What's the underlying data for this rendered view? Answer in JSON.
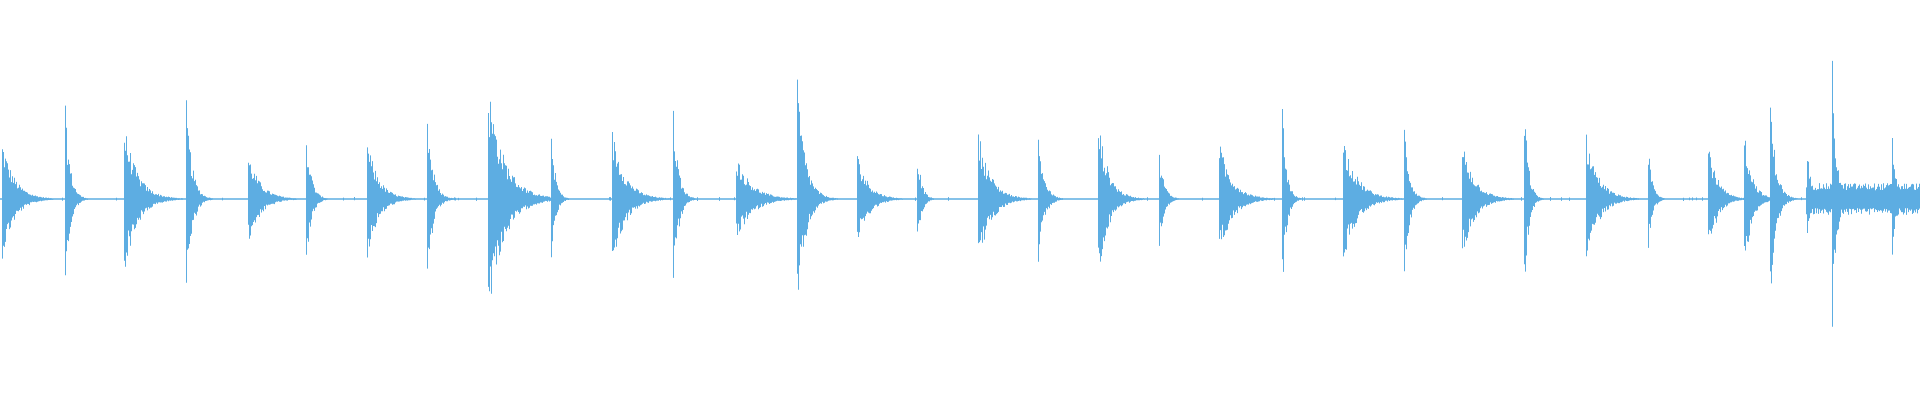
{
  "chart_data": {
    "type": "waveform",
    "title": "",
    "xlabel": "",
    "ylabel": "",
    "duration": 16,
    "ylim": [
      -1,
      1
    ],
    "grid": false,
    "color": "#5dade2",
    "background": "#ffffff",
    "tail_noise": {
      "start": 15.05,
      "end": 16,
      "amplitude": 0.08
    },
    "onsets": [
      {
        "t": 0.02,
        "amp": 0.3,
        "decay": 0.3
      },
      {
        "t": 0.54,
        "amp": 0.47,
        "decay": 0.12
      },
      {
        "t": 1.03,
        "amp": 0.38,
        "decay": 0.32
      },
      {
        "t": 1.55,
        "amp": 0.5,
        "decay": 0.14
      },
      {
        "t": 2.07,
        "amp": 0.23,
        "decay": 0.3
      },
      {
        "t": 2.55,
        "amp": 0.35,
        "decay": 0.12
      },
      {
        "t": 3.06,
        "amp": 0.3,
        "decay": 0.28
      },
      {
        "t": 3.56,
        "amp": 0.44,
        "decay": 0.14
      },
      {
        "t": 4.07,
        "amp": 0.58,
        "decay": 0.4
      },
      {
        "t": 4.59,
        "amp": 0.36,
        "decay": 0.1
      },
      {
        "t": 5.1,
        "amp": 0.35,
        "decay": 0.32
      },
      {
        "t": 5.61,
        "amp": 0.5,
        "decay": 0.12
      },
      {
        "t": 6.13,
        "amp": 0.22,
        "decay": 0.38
      },
      {
        "t": 6.64,
        "amp": 0.6,
        "decay": 0.2
      },
      {
        "t": 7.14,
        "amp": 0.23,
        "decay": 0.28
      },
      {
        "t": 7.64,
        "amp": 0.26,
        "decay": 0.1
      },
      {
        "t": 8.15,
        "amp": 0.35,
        "decay": 0.3
      },
      {
        "t": 8.65,
        "amp": 0.34,
        "decay": 0.14
      },
      {
        "t": 9.15,
        "amp": 0.41,
        "decay": 0.25
      },
      {
        "t": 9.66,
        "amp": 0.24,
        "decay": 0.12
      },
      {
        "t": 10.16,
        "amp": 0.29,
        "decay": 0.32
      },
      {
        "t": 10.68,
        "amp": 0.49,
        "decay": 0.1
      },
      {
        "t": 11.19,
        "amp": 0.32,
        "decay": 0.34
      },
      {
        "t": 11.7,
        "amp": 0.4,
        "decay": 0.12
      },
      {
        "t": 12.18,
        "amp": 0.3,
        "decay": 0.3
      },
      {
        "t": 12.7,
        "amp": 0.5,
        "decay": 0.1
      },
      {
        "t": 13.22,
        "amp": 0.33,
        "decay": 0.3
      },
      {
        "t": 13.73,
        "amp": 0.26,
        "decay": 0.1
      },
      {
        "t": 14.23,
        "amp": 0.3,
        "decay": 0.22
      },
      {
        "t": 14.53,
        "amp": 0.38,
        "decay": 0.18
      },
      {
        "t": 14.75,
        "amp": 0.52,
        "decay": 0.14
      },
      {
        "t": 15.06,
        "amp": 0.25,
        "decay": 0.1
      },
      {
        "t": 15.27,
        "amp": 0.71,
        "decay": 0.1
      },
      {
        "t": 15.77,
        "amp": 0.33,
        "decay": 0.1
      }
    ]
  }
}
